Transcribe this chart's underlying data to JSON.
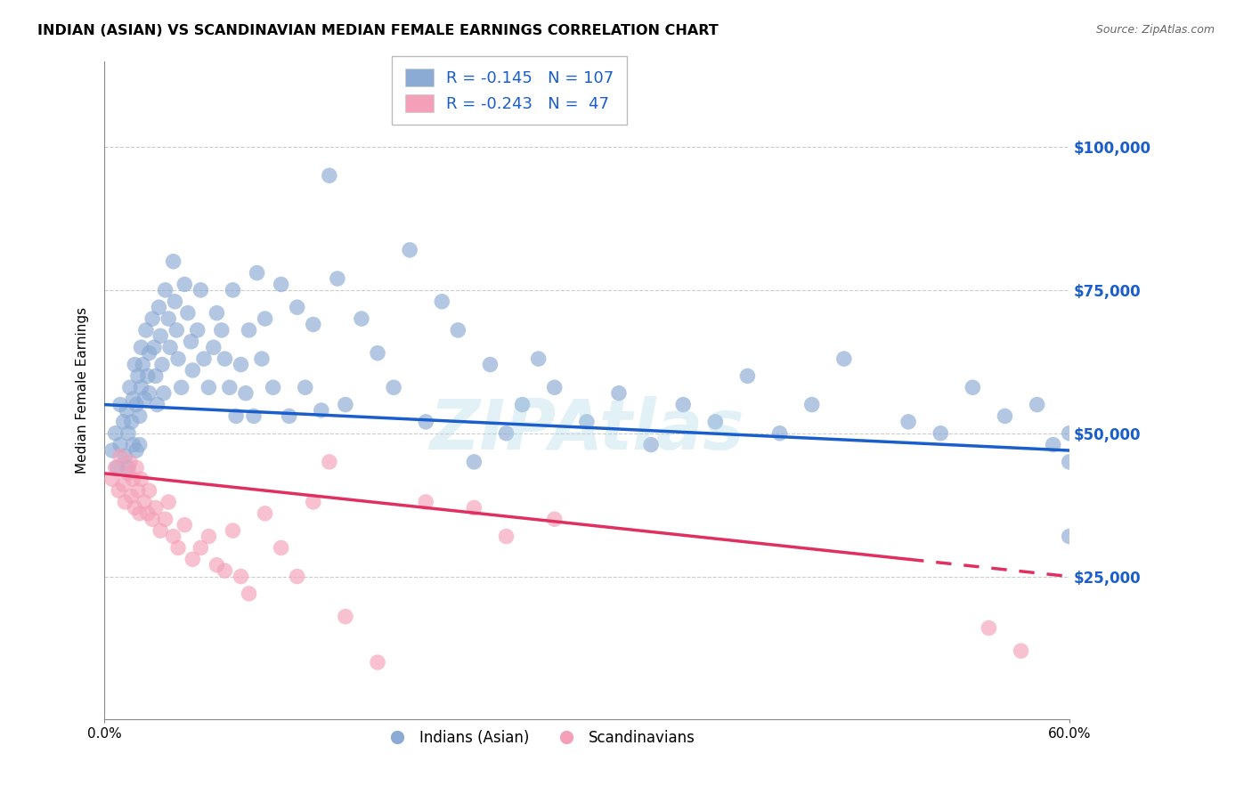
{
  "title": "INDIAN (ASIAN) VS SCANDINAVIAN MEDIAN FEMALE EARNINGS CORRELATION CHART",
  "source": "Source: ZipAtlas.com",
  "ylabel": "Median Female Earnings",
  "xmin": 0.0,
  "xmax": 0.6,
  "ymin": 0,
  "ymax": 115000,
  "yticks": [
    25000,
    50000,
    75000,
    100000
  ],
  "ytick_labels": [
    "$25,000",
    "$50,000",
    "$75,000",
    "$100,000"
  ],
  "blue_R": -0.145,
  "blue_N": 107,
  "pink_R": -0.243,
  "pink_N": 47,
  "blue_color": "#8BAAD4",
  "pink_color": "#F4A0B8",
  "blue_line_color": "#1A5ECC",
  "pink_line_color": "#E03060",
  "ytick_color": "#1A5ECC",
  "legend_label_blue": "Indians (Asian)",
  "legend_label_pink": "Scandinavians",
  "background_color": "#ffffff",
  "grid_color": "#cccccc",
  "blue_trend_x0": 0.0,
  "blue_trend_y0": 55000,
  "blue_trend_x1": 0.6,
  "blue_trend_y1": 47000,
  "pink_trend_x0": 0.0,
  "pink_trend_y0": 43000,
  "pink_trend_x1": 0.6,
  "pink_trend_y1": 25000,
  "blue_scatter_x": [
    0.005,
    0.007,
    0.008,
    0.01,
    0.01,
    0.012,
    0.013,
    0.014,
    0.015,
    0.015,
    0.016,
    0.017,
    0.018,
    0.018,
    0.019,
    0.02,
    0.02,
    0.021,
    0.022,
    0.022,
    0.023,
    0.023,
    0.024,
    0.025,
    0.026,
    0.027,
    0.028,
    0.028,
    0.03,
    0.031,
    0.032,
    0.033,
    0.034,
    0.035,
    0.036,
    0.037,
    0.038,
    0.04,
    0.041,
    0.043,
    0.044,
    0.045,
    0.046,
    0.048,
    0.05,
    0.052,
    0.054,
    0.055,
    0.058,
    0.06,
    0.062,
    0.065,
    0.068,
    0.07,
    0.073,
    0.075,
    0.078,
    0.08,
    0.082,
    0.085,
    0.088,
    0.09,
    0.093,
    0.095,
    0.098,
    0.1,
    0.105,
    0.11,
    0.115,
    0.12,
    0.125,
    0.13,
    0.135,
    0.14,
    0.145,
    0.15,
    0.16,
    0.17,
    0.18,
    0.19,
    0.2,
    0.21,
    0.22,
    0.23,
    0.24,
    0.25,
    0.26,
    0.27,
    0.28,
    0.3,
    0.32,
    0.34,
    0.36,
    0.38,
    0.4,
    0.42,
    0.44,
    0.46,
    0.5,
    0.52,
    0.54,
    0.56,
    0.58,
    0.59,
    0.6,
    0.6,
    0.6
  ],
  "blue_scatter_y": [
    47000,
    50000,
    44000,
    55000,
    48000,
    52000,
    46000,
    54000,
    50000,
    44000,
    58000,
    52000,
    56000,
    48000,
    62000,
    55000,
    47000,
    60000,
    53000,
    48000,
    65000,
    58000,
    62000,
    56000,
    68000,
    60000,
    64000,
    57000,
    70000,
    65000,
    60000,
    55000,
    72000,
    67000,
    62000,
    57000,
    75000,
    70000,
    65000,
    80000,
    73000,
    68000,
    63000,
    58000,
    76000,
    71000,
    66000,
    61000,
    68000,
    75000,
    63000,
    58000,
    65000,
    71000,
    68000,
    63000,
    58000,
    75000,
    53000,
    62000,
    57000,
    68000,
    53000,
    78000,
    63000,
    70000,
    58000,
    76000,
    53000,
    72000,
    58000,
    69000,
    54000,
    95000,
    77000,
    55000,
    70000,
    64000,
    58000,
    82000,
    52000,
    73000,
    68000,
    45000,
    62000,
    50000,
    55000,
    63000,
    58000,
    52000,
    57000,
    48000,
    55000,
    52000,
    60000,
    50000,
    55000,
    63000,
    52000,
    50000,
    58000,
    53000,
    55000,
    48000,
    45000,
    50000,
    32000
  ],
  "pink_scatter_x": [
    0.005,
    0.007,
    0.009,
    0.01,
    0.012,
    0.013,
    0.015,
    0.016,
    0.017,
    0.018,
    0.019,
    0.02,
    0.021,
    0.022,
    0.023,
    0.025,
    0.027,
    0.028,
    0.03,
    0.032,
    0.035,
    0.038,
    0.04,
    0.043,
    0.046,
    0.05,
    0.055,
    0.06,
    0.065,
    0.07,
    0.075,
    0.08,
    0.085,
    0.09,
    0.1,
    0.11,
    0.12,
    0.13,
    0.14,
    0.15,
    0.17,
    0.2,
    0.23,
    0.25,
    0.28,
    0.55,
    0.57
  ],
  "pink_scatter_y": [
    42000,
    44000,
    40000,
    46000,
    41000,
    38000,
    43000,
    45000,
    39000,
    42000,
    37000,
    44000,
    40000,
    36000,
    42000,
    38000,
    36000,
    40000,
    35000,
    37000,
    33000,
    35000,
    38000,
    32000,
    30000,
    34000,
    28000,
    30000,
    32000,
    27000,
    26000,
    33000,
    25000,
    22000,
    36000,
    30000,
    25000,
    38000,
    45000,
    18000,
    10000,
    38000,
    37000,
    32000,
    35000,
    16000,
    12000
  ]
}
